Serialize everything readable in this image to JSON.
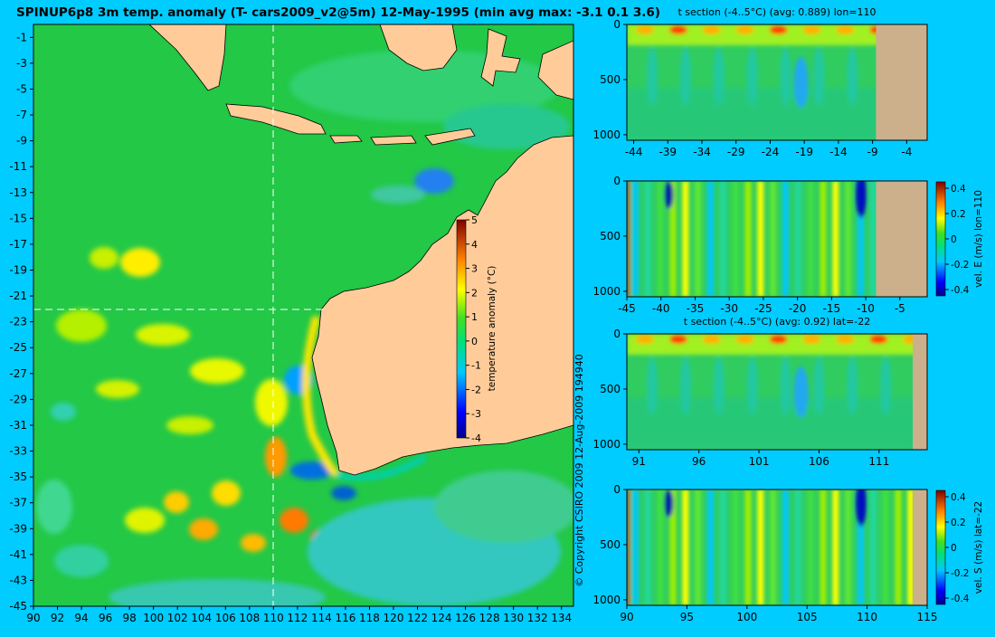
{
  "title": "SPINUP6p8 3m temp. anomaly (T- cars2009_v2@5m) 12-May-1995 (min avg max: -3.1 0.1 3.6)",
  "copyright": "© Copyright CSIRO 2009   12-Aug-2009 194940",
  "map": {
    "lon_range": [
      90,
      135
    ],
    "lat_range": [
      -45,
      0
    ],
    "lon_ticks": [
      "90",
      "92",
      "94",
      "96",
      "98",
      "100",
      "102",
      "104",
      "106",
      "108",
      "110",
      "112",
      "114",
      "116",
      "118",
      "120",
      "122",
      "124",
      "126",
      "128",
      "130",
      "132",
      "134"
    ],
    "lat_ticks": [
      "-1",
      "-3",
      "-5",
      "-7",
      "-9",
      "-11",
      "-13",
      "-15",
      "-17",
      "-19",
      "-21",
      "-23",
      "-25",
      "-27",
      "-29",
      "-31",
      "-33",
      "-35",
      "-37",
      "-39",
      "-41",
      "-43",
      "-45"
    ],
    "section_lon": 110,
    "section_lat": -22,
    "colorbar": {
      "label": "temperature anomaly (°C)",
      "range": [
        -4,
        5
      ],
      "ticks": [
        "5",
        "4",
        "3",
        "2",
        "1",
        "0",
        "-1",
        "-2",
        "-3",
        "-4"
      ]
    },
    "colors": {
      "land": "#ffcc99",
      "ocean": "#22c846",
      "frame": "#00ccff"
    }
  },
  "panels": [
    {
      "title": "t section (-4..5°C) (avg: 0.889) lon=110",
      "x_ticks": [
        "-44",
        "-39",
        "-34",
        "-29",
        "-24",
        "-19",
        "-14",
        "-9",
        "-4"
      ],
      "x_range": [
        -45,
        -1
      ],
      "y_ticks": [
        "0",
        "500",
        "1000"
      ],
      "y_range": [
        0,
        1050
      ],
      "land_from": -8.5,
      "kind": "temp"
    },
    {
      "title": "",
      "x_ticks": [
        "-45",
        "-40",
        "-35",
        "-30",
        "-25",
        "-20",
        "-15",
        "-10",
        "-5"
      ],
      "x_range": [
        -45,
        -1
      ],
      "y_ticks": [
        "0",
        "500",
        "1000"
      ],
      "y_range": [
        0,
        1050
      ],
      "land_from": -8.5,
      "kind": "vel",
      "colorbar": {
        "label": "vel. E (m/s) lon=110",
        "ticks": [
          "0.4",
          "0.2",
          "0",
          "-0.2",
          "-0.4"
        ],
        "range": [
          -0.45,
          0.45
        ]
      }
    },
    {
      "title": "t section (-4..5°C) (avg: 0.92) lat=-22",
      "x_ticks": [
        "91",
        "96",
        "101",
        "106",
        "111"
      ],
      "x_range": [
        90,
        115
      ],
      "y_ticks": [
        "0",
        "500",
        "1000"
      ],
      "y_range": [
        0,
        1050
      ],
      "land_from": 113.8,
      "kind": "temp"
    },
    {
      "title": "",
      "x_ticks": [
        "90",
        "95",
        "100",
        "105",
        "110",
        "115"
      ],
      "x_range": [
        90,
        115
      ],
      "y_ticks": [
        "0",
        "500",
        "1000"
      ],
      "y_range": [
        0,
        1050
      ],
      "land_from": 113.8,
      "kind": "vel",
      "colorbar": {
        "label": "vel. S (m/s) lat=-22",
        "ticks": [
          "0.4",
          "0.2",
          "0",
          "-0.2",
          "-0.4"
        ],
        "range": [
          -0.45,
          0.45
        ]
      }
    }
  ]
}
